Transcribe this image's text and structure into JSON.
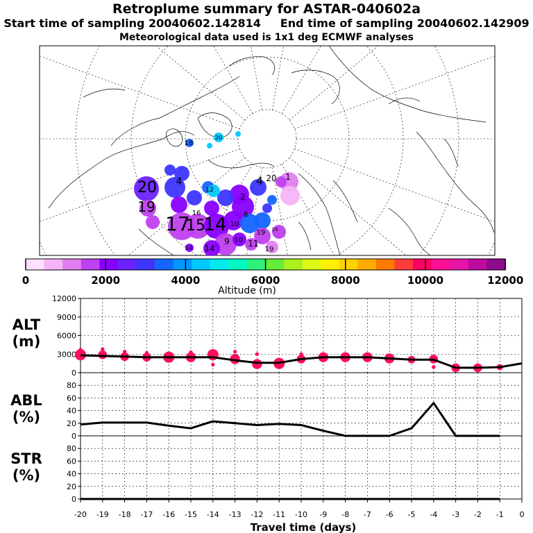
{
  "header": {
    "title": "Retroplume summary for ASTAR-040602a",
    "subtitle": "Start time of sampling 20040602.142814     End time of sampling 20040602.142909",
    "meteo": "Meteorological data used is 1x1 deg ECMWF analyses"
  },
  "colorbar": {
    "colors": [
      "#ffe0ff",
      "#f5b4f5",
      "#e07ff0",
      "#c040ee",
      "#8800ff",
      "#6a22ff",
      "#3e36ff",
      "#1466ff",
      "#0098ff",
      "#00c8ff",
      "#00ecec",
      "#00fac2",
      "#2ef07c",
      "#64ec3a",
      "#a8f01e",
      "#dcf814",
      "#fff000",
      "#ffd200",
      "#ffaa00",
      "#ff7a00",
      "#ff3c3c",
      "#ff0066",
      "#ff0f94",
      "#e614a8",
      "#be0a9e",
      "#8c0a8c"
    ],
    "ticks": [
      "0",
      "2000",
      "4000",
      "6000",
      "8000",
      "10000",
      "12000"
    ],
    "label": "Altitude (m)"
  },
  "map": {
    "labels": [
      "20",
      "18",
      "20",
      "4",
      "1",
      "20",
      "19",
      "17",
      "15",
      "14",
      "14",
      "14",
      "19",
      "19",
      "11",
      "10",
      "4",
      "2",
      "10",
      "19",
      "12",
      "8",
      "16",
      "9"
    ]
  },
  "chart_data": [
    {
      "type": "line",
      "panel": "ALT",
      "ylabel": "ALT (m)",
      "ylim": [
        0,
        12000
      ],
      "yticks": [
        "0",
        "3000",
        "6000",
        "9000",
        "12000"
      ],
      "x": [
        -20,
        -19,
        -18,
        -17,
        -16,
        -15,
        -14,
        -13,
        -12,
        -11,
        -10,
        -9,
        -8,
        -7,
        -6,
        -5,
        -4,
        -3,
        -2,
        -1,
        0
      ],
      "values": [
        2800,
        2700,
        2600,
        2500,
        2500,
        2500,
        2500,
        2000,
        1600,
        1600,
        2200,
        2500,
        2500,
        2500,
        2300,
        2100,
        2100,
        800,
        800,
        900,
        1500
      ],
      "plume_points": [
        [
          -20,
          2900,
          9
        ],
        [
          -20,
          3700,
          3
        ],
        [
          -19,
          2900,
          7
        ],
        [
          -19,
          3800,
          3
        ],
        [
          -18,
          2600,
          7
        ],
        [
          -18,
          3400,
          3
        ],
        [
          -17,
          2500,
          7
        ],
        [
          -17,
          3200,
          3
        ],
        [
          -16,
          2500,
          9
        ],
        [
          -16,
          3100,
          3
        ],
        [
          -15,
          2500,
          8
        ],
        [
          -15,
          3300,
          3
        ],
        [
          -14,
          2900,
          9
        ],
        [
          -14,
          1300,
          3
        ],
        [
          -13,
          2200,
          8
        ],
        [
          -13,
          3400,
          3
        ],
        [
          -12,
          1400,
          8
        ],
        [
          -12,
          3000,
          3
        ],
        [
          -11,
          1500,
          9
        ],
        [
          -10,
          2200,
          7
        ],
        [
          -10,
          3000,
          3
        ],
        [
          -9,
          2500,
          8
        ],
        [
          -8,
          2500,
          8
        ],
        [
          -7,
          2500,
          8
        ],
        [
          -6,
          2300,
          8
        ],
        [
          -5,
          2100,
          6
        ],
        [
          -4,
          2200,
          7
        ],
        [
          -4,
          900,
          3
        ],
        [
          -3,
          800,
          7
        ],
        [
          -2,
          800,
          7
        ],
        [
          -1,
          900,
          5
        ]
      ]
    },
    {
      "type": "line",
      "panel": "ABL",
      "ylabel": "ABL (%)",
      "ylim": [
        0,
        100
      ],
      "yticks": [
        "0",
        "20",
        "40",
        "60",
        "80"
      ],
      "x": [
        -20,
        -19,
        -18,
        -17,
        -16,
        -15,
        -14,
        -13,
        -12,
        -11,
        -10,
        -9,
        -8,
        -7,
        -6,
        -5,
        -4,
        -3,
        -2,
        -1
      ],
      "values": [
        18,
        21,
        21,
        21,
        16,
        12,
        23,
        20,
        17,
        19,
        17,
        8,
        0,
        0,
        0,
        12,
        52,
        0,
        0,
        0
      ]
    },
    {
      "type": "line",
      "panel": "STR",
      "ylabel": "STR (%)",
      "ylim": [
        0,
        100
      ],
      "yticks": [
        "0",
        "20",
        "40",
        "60",
        "80"
      ],
      "x": [
        -20,
        -19,
        -18,
        -17,
        -16,
        -15,
        -14,
        -13,
        -12,
        -11,
        -10,
        -9,
        -8,
        -7,
        -6,
        -5,
        -4,
        -3,
        -2,
        -1
      ],
      "values": [
        0,
        0,
        0,
        0,
        0,
        0,
        0,
        0,
        0,
        0,
        0,
        0,
        0,
        0,
        0,
        0,
        0,
        0,
        0,
        0
      ]
    }
  ],
  "xaxis": {
    "label": "Travel time (days)",
    "ticks": [
      "-20",
      "-19",
      "-18",
      "-17",
      "-16",
      "-15",
      "-14",
      "-13",
      "-12",
      "-11",
      "-10",
      "-9",
      "-8",
      "-7",
      "-6",
      "-5",
      "-4",
      "-3",
      "-2",
      "-1",
      "0"
    ]
  }
}
